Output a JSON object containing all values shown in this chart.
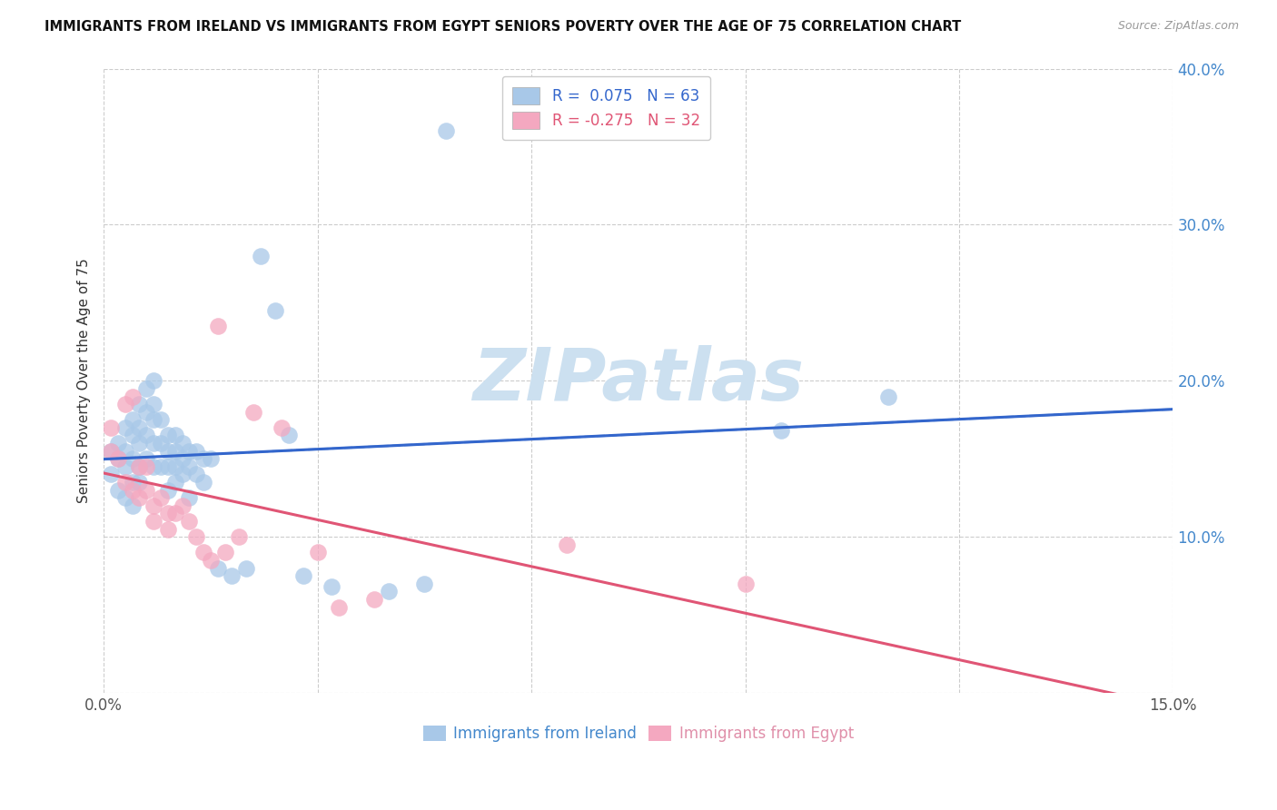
{
  "title": "IMMIGRANTS FROM IRELAND VS IMMIGRANTS FROM EGYPT SENIORS POVERTY OVER THE AGE OF 75 CORRELATION CHART",
  "source": "Source: ZipAtlas.com",
  "ylabel": "Seniors Poverty Over the Age of 75",
  "xlim": [
    0.0,
    0.15
  ],
  "ylim": [
    0.0,
    0.4
  ],
  "xticks": [
    0.0,
    0.03,
    0.06,
    0.09,
    0.12,
    0.15
  ],
  "yticks": [
    0.0,
    0.1,
    0.2,
    0.3,
    0.4
  ],
  "ireland_R": 0.075,
  "ireland_N": 63,
  "egypt_R": -0.275,
  "egypt_N": 32,
  "ireland_color": "#a8c8e8",
  "egypt_color": "#f4a8c0",
  "ireland_line_color": "#3366cc",
  "egypt_line_color": "#e05575",
  "ireland_dashed_color": "#88aadd",
  "watermark_text": "ZIPatlas",
  "watermark_color": "#cce0f0",
  "background_color": "#ffffff",
  "grid_color": "#cccccc",
  "ireland_x": [
    0.001,
    0.001,
    0.002,
    0.002,
    0.002,
    0.003,
    0.003,
    0.003,
    0.003,
    0.004,
    0.004,
    0.004,
    0.004,
    0.004,
    0.005,
    0.005,
    0.005,
    0.005,
    0.005,
    0.006,
    0.006,
    0.006,
    0.006,
    0.007,
    0.007,
    0.007,
    0.007,
    0.007,
    0.008,
    0.008,
    0.008,
    0.009,
    0.009,
    0.009,
    0.009,
    0.01,
    0.01,
    0.01,
    0.01,
    0.011,
    0.011,
    0.011,
    0.012,
    0.012,
    0.012,
    0.013,
    0.013,
    0.014,
    0.014,
    0.015,
    0.016,
    0.018,
    0.02,
    0.022,
    0.024,
    0.026,
    0.028,
    0.032,
    0.04,
    0.045,
    0.048,
    0.095,
    0.11
  ],
  "ireland_y": [
    0.155,
    0.14,
    0.16,
    0.15,
    0.13,
    0.17,
    0.155,
    0.145,
    0.125,
    0.175,
    0.165,
    0.15,
    0.135,
    0.12,
    0.185,
    0.17,
    0.16,
    0.145,
    0.135,
    0.195,
    0.18,
    0.165,
    0.15,
    0.2,
    0.185,
    0.175,
    0.16,
    0.145,
    0.175,
    0.16,
    0.145,
    0.165,
    0.155,
    0.145,
    0.13,
    0.165,
    0.155,
    0.145,
    0.135,
    0.16,
    0.15,
    0.14,
    0.155,
    0.145,
    0.125,
    0.155,
    0.14,
    0.15,
    0.135,
    0.15,
    0.08,
    0.075,
    0.08,
    0.28,
    0.245,
    0.165,
    0.075,
    0.068,
    0.065,
    0.07,
    0.36,
    0.168,
    0.19
  ],
  "egypt_x": [
    0.001,
    0.001,
    0.002,
    0.003,
    0.003,
    0.004,
    0.004,
    0.005,
    0.005,
    0.006,
    0.006,
    0.007,
    0.007,
    0.008,
    0.009,
    0.009,
    0.01,
    0.011,
    0.012,
    0.013,
    0.014,
    0.015,
    0.016,
    0.017,
    0.019,
    0.021,
    0.025,
    0.03,
    0.033,
    0.038,
    0.065,
    0.09
  ],
  "egypt_y": [
    0.17,
    0.155,
    0.15,
    0.185,
    0.135,
    0.19,
    0.13,
    0.145,
    0.125,
    0.145,
    0.13,
    0.12,
    0.11,
    0.125,
    0.115,
    0.105,
    0.115,
    0.12,
    0.11,
    0.1,
    0.09,
    0.085,
    0.235,
    0.09,
    0.1,
    0.18,
    0.17,
    0.09,
    0.055,
    0.06,
    0.095,
    0.07
  ],
  "legend_ireland_label": "Immigrants from Ireland",
  "legend_egypt_label": "Immigrants from Egypt"
}
